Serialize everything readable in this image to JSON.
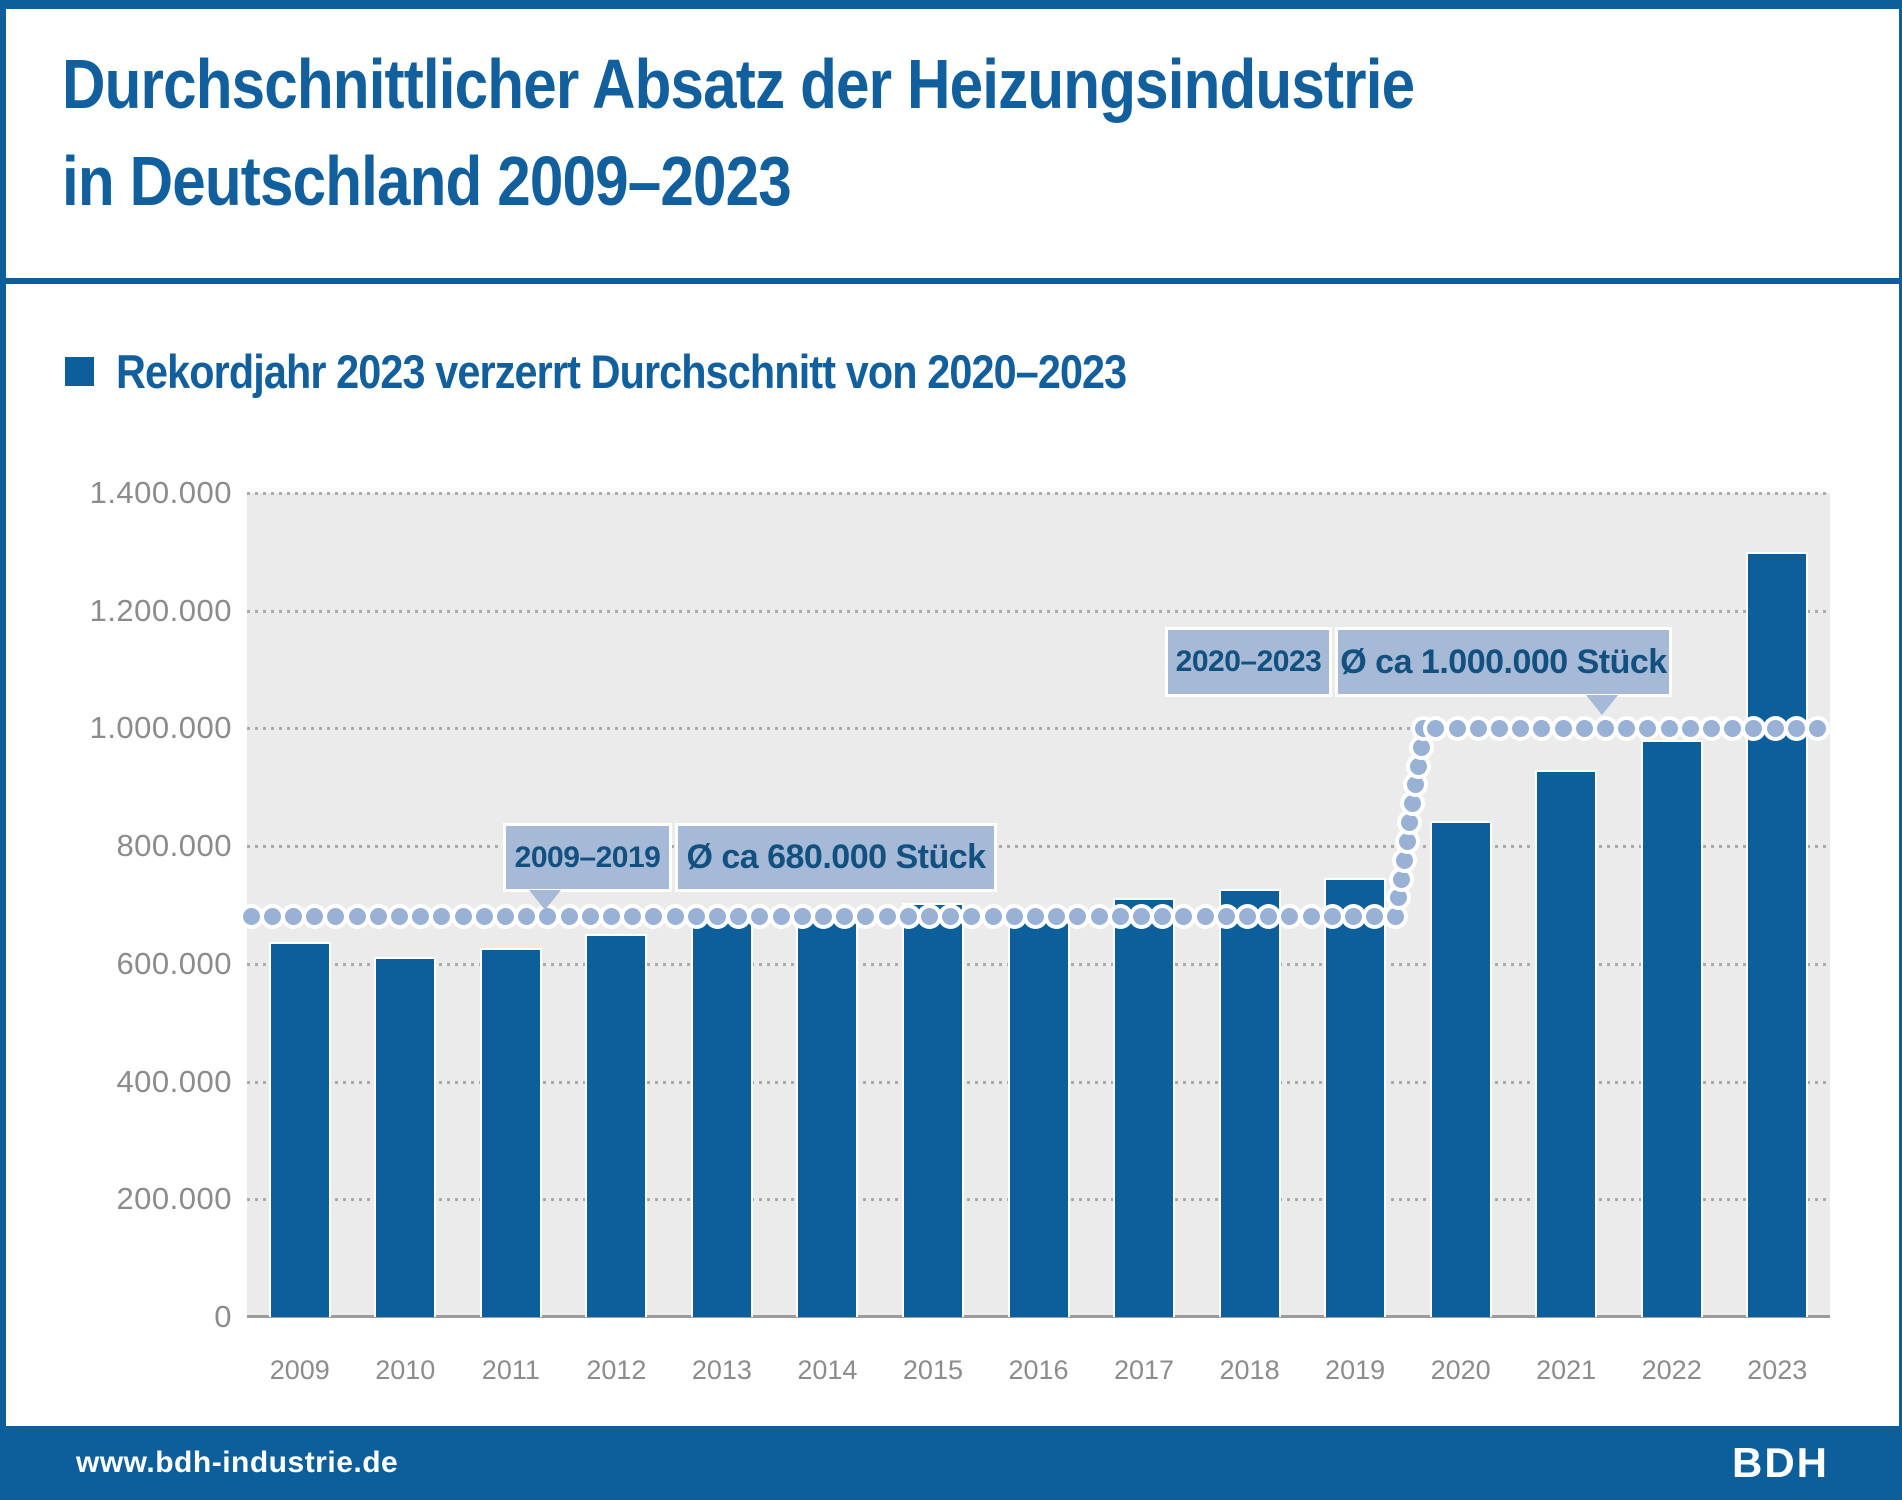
{
  "header": {
    "title_line1": "Durchschnittlicher Absatz der Heizungsindustrie",
    "title_line2": "in Deutschland 2009–2023"
  },
  "subtitle": "Rekordjahr 2023 verzerrt Durchschnitt von 2020–2023",
  "chart_data": {
    "type": "bar",
    "title": "Durchschnittlicher Absatz der Heizungsindustrie in Deutschland 2009–2023",
    "categories": [
      "2009",
      "2010",
      "2011",
      "2012",
      "2013",
      "2014",
      "2015",
      "2016",
      "2017",
      "2018",
      "2019",
      "2020",
      "2021",
      "2022",
      "2023"
    ],
    "values": [
      637000,
      612500,
      626500,
      650500,
      686500,
      681500,
      703000,
      693000,
      712000,
      726500,
      746500,
      843000,
      929500,
      980000,
      1300000
    ],
    "unit": "Stück",
    "xlabel": "",
    "ylabel": "",
    "ylim": [
      0,
      1400000
    ],
    "ytick_step": 200000,
    "ytick_labels": [
      "1.400.000",
      "1.200.000",
      "1.000.000",
      "800.000",
      "600.000",
      "400.000",
      "200.000",
      "0"
    ],
    "grid": "horizontal-dotted",
    "legend": "none",
    "average_lines": [
      {
        "period": "2009–2019",
        "label": "Ø ca 680.000 Stück",
        "value": 680000,
        "from_category": "2009",
        "to_category": "2019"
      },
      {
        "period": "2020–2023",
        "label": "Ø ca 1.000.000 Stück",
        "value": 1000000,
        "from_category": "2020",
        "to_category": "2023"
      }
    ]
  },
  "footer": {
    "url": "www.bdh-industrie.de",
    "logo": "BDH"
  },
  "colors": {
    "bar": "#0d5f9c",
    "frame": "#0d5f9c",
    "title_text": "#125f9e",
    "average_dots": "#98b1d5",
    "callout_bg": "#a6bad8",
    "callout_text": "#12517f",
    "plot_bg": "#ebebeb",
    "axis_text": "#8c8c8c",
    "footer_bg": "#0d5f9c"
  }
}
